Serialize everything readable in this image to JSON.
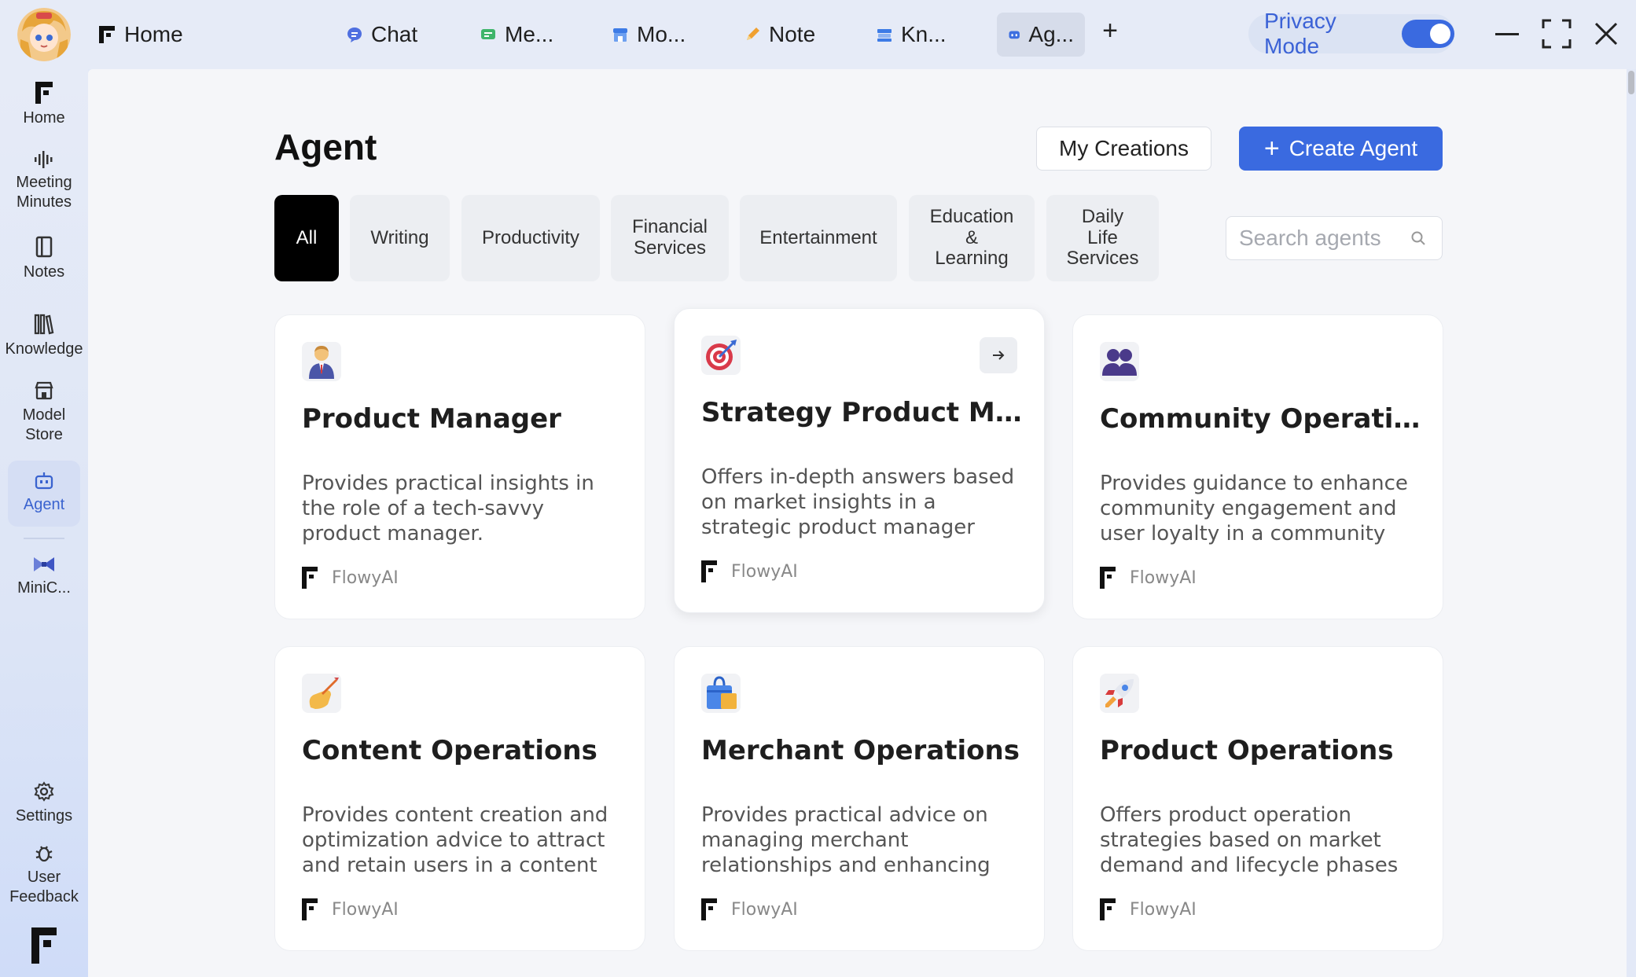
{
  "titlebar": {
    "home_label": "Home",
    "tabs": [
      {
        "label": "Chat",
        "icon": "chat-bubble-icon"
      },
      {
        "label": "Me...",
        "icon": "meeting-icon"
      },
      {
        "label": "Mo...",
        "icon": "model-store-icon"
      },
      {
        "label": "Note",
        "icon": "pencil-icon"
      },
      {
        "label": "Kn...",
        "icon": "knowledge-icon"
      },
      {
        "label": "Ag...",
        "icon": "agent-icon",
        "active": true
      }
    ],
    "new_tab": "+",
    "privacy_label": "Privacy Mode",
    "privacy_on": true
  },
  "sidebar": {
    "items": [
      {
        "label": "Home",
        "icon": "flowy-logo-icon"
      },
      {
        "label": "Meeting Minutes",
        "icon": "waveform-icon"
      },
      {
        "label": "Notes",
        "icon": "notebook-icon"
      },
      {
        "label": "Knowledge",
        "icon": "books-icon"
      },
      {
        "label": "Model Store",
        "icon": "store-icon"
      },
      {
        "label": "Agent",
        "icon": "robot-icon",
        "active": true
      },
      {
        "label": "MiniC...",
        "icon": "bowtie-icon"
      }
    ],
    "settings_label": "Settings",
    "feedback_label": "User Feedback"
  },
  "main": {
    "title": "Agent",
    "my_creations": "My Creations",
    "create_agent": "Create Agent",
    "categories": [
      "All",
      "Writing",
      "Productivity",
      "Financial Services",
      "Entertainment",
      "Education & Learning",
      "Daily Life Services"
    ],
    "active_category": "All",
    "search_placeholder": "Search agents"
  },
  "cards": [
    {
      "title": "Product Manager",
      "desc": "Provides practical insights in the role of a tech-savvy product manager.",
      "brand": "FlowyAI",
      "icon": "businessman-icon"
    },
    {
      "title": "Strategy Product Mana...",
      "desc": "Offers in-depth answers based on market insights in a strategic product manager role.",
      "brand": "FlowyAI",
      "icon": "target-icon"
    },
    {
      "title": "Community Operations",
      "desc": "Provides guidance to enhance community engagement and user loyalty in a community operations",
      "brand": "FlowyAI",
      "icon": "people-icon"
    },
    {
      "title": "Content Operations",
      "desc": "Provides content creation and optimization advice to attract and retain users in a content",
      "brand": "FlowyAI",
      "icon": "writing-hand-icon"
    },
    {
      "title": "Merchant Operations",
      "desc": "Provides practical advice on managing merchant relationships and enhancing satisfaction as a",
      "brand": "FlowyAI",
      "icon": "shopping-bag-icon"
    },
    {
      "title": "Product Operations",
      "desc": "Offers product operation strategies based on market demand and lifecycle phases as a",
      "brand": "FlowyAI",
      "icon": "rocket-icon"
    }
  ],
  "colors": {
    "accent": "#3a6ae0",
    "active_chip": "#000000"
  }
}
